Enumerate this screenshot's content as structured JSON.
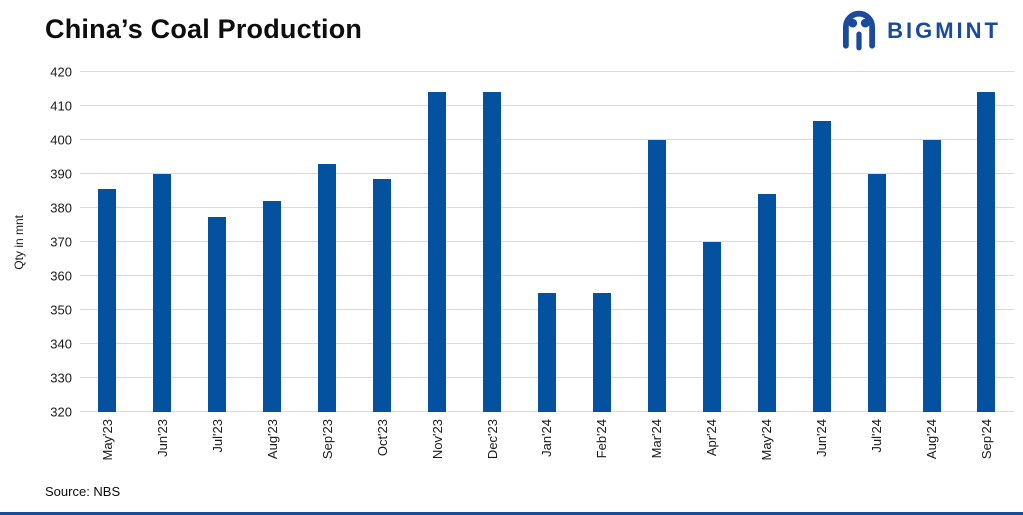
{
  "header": {
    "title": "China’s Coal Production",
    "logo_text": "BIGMINT"
  },
  "footer": {
    "source": "Source: NBS"
  },
  "colors": {
    "bar": "#0451A0",
    "accent": "#1A4A9C",
    "gridline": "#DADADA",
    "text": "#0d0d0d"
  },
  "chart_data": {
    "type": "bar",
    "title": "China’s Coal Production",
    "xlabel": "",
    "ylabel": "Qty in mnt",
    "ylim": [
      320,
      420
    ],
    "yticks": [
      320,
      330,
      340,
      350,
      360,
      370,
      380,
      390,
      400,
      410,
      420
    ],
    "grid": true,
    "legend_position": "none",
    "bar_color": "#0451A0",
    "categories": [
      "May'23",
      "Jun'23",
      "Jul'23",
      "Aug'23",
      "Sep'23",
      "Oct'23",
      "Nov'23",
      "Dec'23",
      "Jan'24",
      "Feb'24",
      "Mar'24",
      "Apr'24",
      "May'24",
      "Jun'24",
      "Jul'24",
      "Aug'24",
      "Sep'24"
    ],
    "values": [
      385.5,
      390,
      377.5,
      382,
      393,
      388.5,
      414,
      414,
      355,
      355,
      400,
      370,
      384,
      405.5,
      390,
      400,
      414
    ]
  }
}
